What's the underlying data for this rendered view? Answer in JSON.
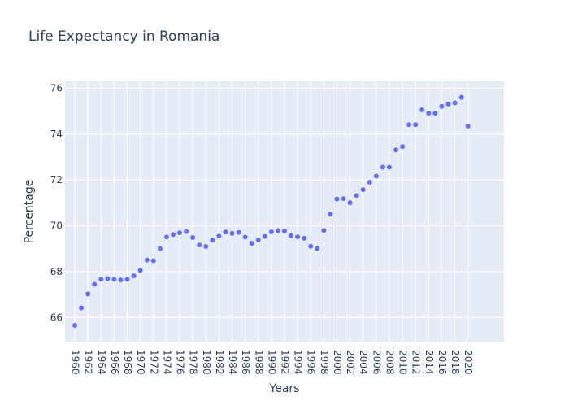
{
  "chart_data": {
    "type": "scatter",
    "title": "Life Expectancy in Romania",
    "xlabel": "Years",
    "ylabel": "Percentage",
    "x": [
      1960,
      1961,
      1962,
      1963,
      1964,
      1965,
      1966,
      1967,
      1968,
      1969,
      1970,
      1971,
      1972,
      1973,
      1974,
      1975,
      1976,
      1977,
      1978,
      1979,
      1980,
      1981,
      1982,
      1983,
      1984,
      1985,
      1986,
      1987,
      1988,
      1989,
      1990,
      1991,
      1992,
      1993,
      1994,
      1995,
      1996,
      1997,
      1998,
      1999,
      2000,
      2001,
      2002,
      2003,
      2004,
      2005,
      2006,
      2007,
      2008,
      2009,
      2010,
      2011,
      2012,
      2013,
      2014,
      2015,
      2016,
      2017,
      2018,
      2019,
      2020
    ],
    "y": [
      65.66,
      66.42,
      67.03,
      67.45,
      67.67,
      67.7,
      67.67,
      67.64,
      67.67,
      67.82,
      68.06,
      68.51,
      68.48,
      69.01,
      69.51,
      69.62,
      69.7,
      69.75,
      69.49,
      69.16,
      69.1,
      69.38,
      69.55,
      69.73,
      69.67,
      69.71,
      69.51,
      69.24,
      69.39,
      69.54,
      69.74,
      69.79,
      69.78,
      69.57,
      69.52,
      69.46,
      69.11,
      69.01,
      69.8,
      70.51,
      71.17,
      71.19,
      71.01,
      71.32,
      71.58,
      71.9,
      72.17,
      72.56,
      72.56,
      73.31,
      73.46,
      74.41,
      74.41,
      75.06,
      74.91,
      74.91,
      75.21,
      75.31,
      75.36,
      75.6,
      74.35
    ],
    "x_ticks": [
      1960,
      1962,
      1964,
      1966,
      1968,
      1970,
      1972,
      1974,
      1976,
      1978,
      1980,
      1982,
      1984,
      1986,
      1988,
      1990,
      1992,
      1994,
      1996,
      1998,
      2000,
      2002,
      2004,
      2006,
      2008,
      2010,
      2012,
      2014,
      2016,
      2018,
      2020
    ],
    "y_ticks": [
      66,
      68,
      70,
      72,
      74,
      76
    ],
    "xlim": [
      1958.5,
      2025.5
    ],
    "ylim": [
      64.95,
      76.3
    ],
    "grid": true,
    "colors": {
      "marker": "#636efa",
      "plot_bg": "#e5ecf6",
      "grid": "#ffffff",
      "text": "#2a3f5f"
    }
  }
}
